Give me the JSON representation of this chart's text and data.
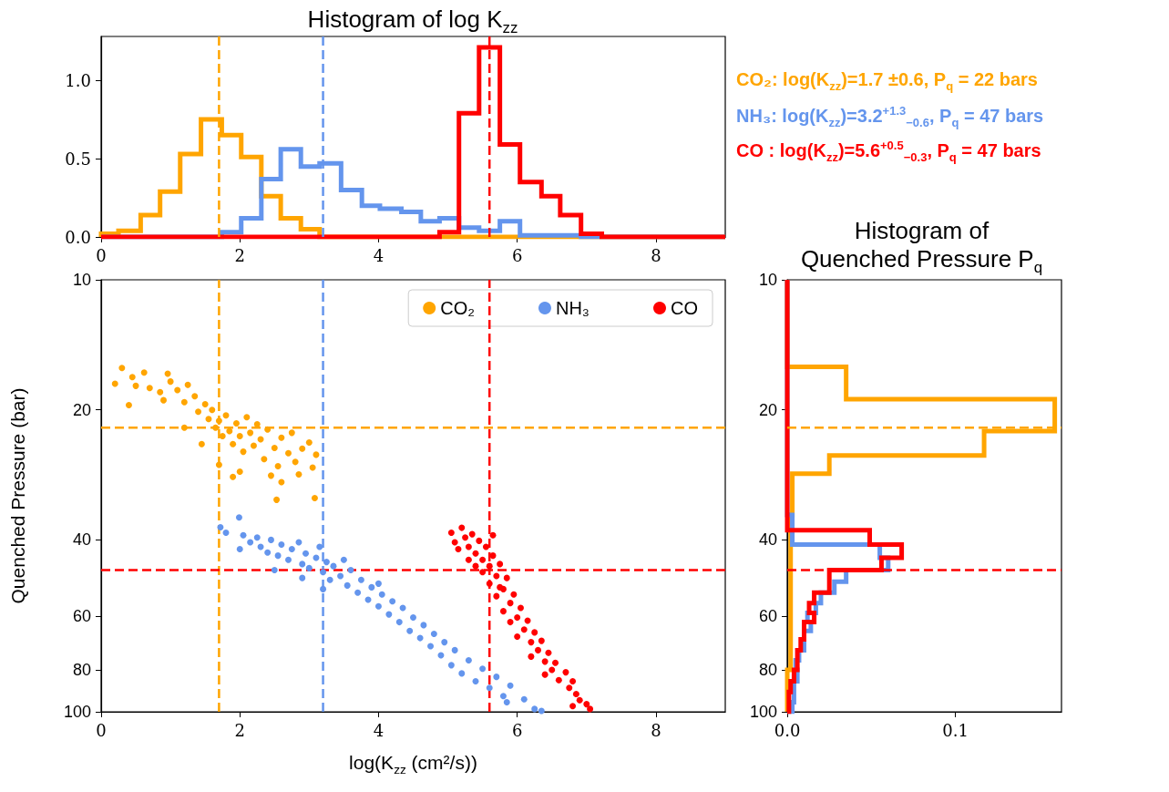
{
  "chart_data": [
    {
      "type": "histogram",
      "title": "Histogram of log K$_{zz}$",
      "xlim": [
        0,
        9
      ],
      "xticks": [
        0,
        2,
        4,
        6,
        8
      ],
      "ylim": [
        0,
        1.28
      ],
      "yticks": [
        {
          "value": 0,
          "label": "0.0"
        },
        {
          "value": 0.5,
          "label": "0.5"
        },
        {
          "value": 1,
          "label": "1.0"
        }
      ],
      "bins": [
        0,
        0.25,
        0.57,
        0.85,
        1.14,
        1.44,
        1.74,
        2.02,
        2.31,
        2.59,
        2.88,
        3.15,
        3.46,
        3.76,
        4.02,
        4.33,
        4.61,
        4.88,
        5.16,
        5.45,
        5.75,
        6.04,
        6.35,
        6.62,
        6.92,
        7.22,
        9
      ],
      "series": [
        {
          "color": "#ffa500",
          "values": [
            0.02,
            0.04,
            0.14,
            0.29,
            0.53,
            0.75,
            0.65,
            0.51,
            0.26,
            0.12,
            0.05,
            0,
            0,
            0,
            0,
            0,
            0,
            0,
            0,
            0,
            0,
            0,
            0,
            0,
            0,
            0
          ]
        },
        {
          "color": "#6495ed",
          "values": [
            0,
            0,
            0,
            0,
            0,
            0,
            0.03,
            0.12,
            0.37,
            0.56,
            0.45,
            0.47,
            0.3,
            0.2,
            0.18,
            0.16,
            0.1,
            0.12,
            0.06,
            0.04,
            0.1,
            0.01,
            0.01,
            0.01,
            0,
            0
          ]
        },
        {
          "color": "#ff0000",
          "values": [
            0,
            0,
            0,
            0,
            0,
            0,
            0,
            0,
            0,
            0,
            0,
            0,
            0,
            0,
            0,
            0,
            0,
            0.03,
            0.79,
            1.21,
            0.59,
            0.35,
            0.26,
            0.14,
            0.02,
            0
          ]
        }
      ],
      "ref_lines": [
        {
          "axis": "x",
          "value": 1.7,
          "color": "#ffa500",
          "line_style": "dashed"
        },
        {
          "axis": "x",
          "value": 3.2,
          "color": "#6495ed",
          "line_style": "dashed"
        },
        {
          "axis": "x",
          "value": 5.6,
          "color": "#ff0000",
          "line_style": "dashed"
        }
      ],
      "annotations": [
        "CO₂: log(K$_{zz}$)=1.7 ±0.6, P$_{q}$ = 22 bars",
        "NH₃: log(K$_{zz}$)=3.2$^{+1.3}$$_{−0.6}$, P$_{q}$ = 47 bars",
        "CO : log(K$_{zz}$)=5.6$^{+0.5}$$_{−0.3}$, P$_{q}$ = 47 bars"
      ]
    },
    {
      "type": "scatter",
      "xlabel": "log(K$_{zz}$ (cm²/s))",
      "ylabel": "Quenched Pressure (bar)",
      "xlim": [
        0,
        9
      ],
      "xticks": [
        0,
        2,
        4,
        6,
        8
      ],
      "ylim": [
        100,
        10
      ],
      "yticks": [
        10,
        20,
        40,
        60,
        80,
        100
      ],
      "log": "y",
      "legend": "top right",
      "marker": "circle",
      "series": [
        {
          "name": "CO₂",
          "color": "#ffa500",
          "x": [
            0.2,
            0.3,
            0.45,
            0.5,
            0.62,
            0.7,
            0.85,
            0.96,
            1.0,
            0.4,
            0.9,
            1.1,
            1.2,
            1.25,
            1.35,
            1.4,
            1.5,
            1.55,
            1.6,
            1.65,
            1.7,
            1.75,
            1.8,
            1.85,
            1.9,
            1.95,
            2.0,
            2.05,
            2.1,
            2.15,
            2.2,
            2.25,
            2.3,
            2.35,
            2.4,
            2.5,
            2.55,
            2.6,
            2.7,
            2.75,
            2.8,
            2.9,
            3.0,
            3.05,
            3.1,
            2.45,
            2.6,
            2.85,
            1.7,
            1.45,
            1.2,
            2.53,
            3.08,
            2.0,
            1.9
          ],
          "values": [
            17.4,
            16.0,
            16.8,
            17.6,
            16.4,
            17.8,
            18.2,
            16.5,
            17.2,
            19.5,
            19.0,
            18.0,
            19.2,
            17.5,
            18.6,
            20.2,
            19.4,
            21.0,
            20.0,
            22.0,
            21.2,
            23.0,
            20.6,
            22.4,
            24.0,
            21.5,
            23.0,
            25.0,
            20.8,
            22.6,
            24.2,
            21.6,
            23.4,
            26.0,
            22.2,
            24.5,
            27.0,
            23.2,
            25.2,
            22.6,
            26.4,
            24.6,
            23.8,
            27.2,
            25.4,
            28.4,
            29.4,
            28.2,
            26.8,
            24.0,
            22.0,
            32.3,
            32.0,
            27.8,
            28.6
          ]
        },
        {
          "name": "NH₃",
          "color": "#6495ed",
          "x": [
            1.72,
            1.8,
            1.99,
            2.05,
            2.0,
            2.15,
            2.25,
            2.3,
            2.4,
            2.45,
            2.55,
            2.6,
            2.7,
            2.75,
            2.85,
            2.9,
            2.95,
            3.0,
            3.1,
            3.15,
            3.2,
            3.25,
            3.3,
            3.35,
            3.45,
            3.5,
            3.55,
            3.6,
            3.7,
            3.75,
            3.85,
            3.9,
            4.0,
            4.05,
            4.15,
            4.2,
            4.3,
            4.35,
            4.45,
            4.5,
            4.6,
            4.65,
            4.75,
            4.8,
            4.9,
            4.95,
            5.05,
            5.1,
            5.2,
            5.3,
            5.4,
            5.5,
            5.6,
            5.7,
            5.8,
            5.85,
            5.9,
            6.1,
            6.25,
            6.35,
            3.2,
            2.5,
            4.0,
            2.9
          ],
          "values": [
            37.4,
            38.5,
            35.5,
            39.0,
            42.0,
            40.5,
            39.5,
            41.5,
            42.8,
            40.0,
            43.5,
            41.0,
            44.5,
            42.0,
            40.5,
            45.5,
            43.0,
            46.5,
            44.0,
            41.5,
            47.5,
            45.0,
            49.5,
            46.0,
            48.5,
            44.5,
            51.0,
            47.0,
            53.0,
            49.5,
            55.0,
            51.5,
            57.0,
            53.5,
            59.5,
            55.5,
            62.0,
            57.5,
            65.0,
            60.5,
            67.5,
            63.0,
            70.5,
            66.0,
            74.0,
            69.0,
            78.0,
            72.0,
            81.5,
            76.0,
            85.0,
            79.5,
            88.0,
            83.0,
            92.0,
            95.0,
            87.0,
            93.5,
            98.5,
            99.5,
            52.0,
            47.0,
            50.5,
            49.0
          ]
        },
        {
          "name": "CO",
          "color": "#ff0000",
          "x": [
            5.05,
            5.1,
            5.2,
            5.15,
            5.25,
            5.3,
            5.35,
            5.4,
            5.45,
            5.5,
            5.55,
            5.6,
            5.5,
            5.65,
            5.7,
            5.75,
            5.6,
            5.8,
            5.7,
            5.85,
            5.9,
            5.8,
            5.95,
            6.0,
            5.9,
            6.05,
            6.1,
            6.0,
            6.15,
            6.2,
            6.25,
            6.3,
            6.2,
            6.35,
            6.4,
            6.45,
            6.5,
            6.4,
            6.55,
            6.6,
            6.7,
            6.75,
            6.8,
            6.85,
            6.9,
            7.0,
            7.05,
            6.8,
            5.4,
            5.3,
            5.65,
            5.75
          ],
          "values": [
            38.5,
            40.5,
            37.5,
            42.0,
            39.5,
            41.5,
            38.8,
            43.0,
            40.2,
            44.5,
            41.5,
            46.0,
            47.5,
            43.5,
            48.5,
            45.5,
            50.5,
            52.0,
            54.0,
            49.0,
            56.0,
            58.5,
            53.5,
            60.5,
            62.0,
            57.5,
            64.5,
            67.0,
            61.5,
            69.0,
            65.5,
            72.0,
            74.5,
            68.5,
            76.5,
            73.0,
            80.0,
            82.0,
            77.0,
            84.5,
            81.0,
            88.0,
            85.0,
            91.0,
            94.0,
            96.0,
            98.5,
            97.0,
            46.0,
            44.5,
            39.0,
            51.5
          ]
        }
      ],
      "ref_lines": [
        {
          "axis": "x",
          "value": 1.7,
          "color": "#ffa500",
          "line_style": "dashed"
        },
        {
          "axis": "x",
          "value": 3.2,
          "color": "#6495ed",
          "line_style": "dashed"
        },
        {
          "axis": "x",
          "value": 5.6,
          "color": "#ff0000",
          "line_style": "dashed"
        },
        {
          "axis": "y",
          "value": 22,
          "color": "#ffa500",
          "line_style": "dashed"
        },
        {
          "axis": "y",
          "value": 47,
          "color": "#ff0000",
          "line_style": "dashed"
        }
      ]
    },
    {
      "type": "histogram",
      "orientation": "horizontal",
      "title": "Histogram of\nQuenched Pressure P$_{q}$",
      "xlim": [
        0,
        0.163
      ],
      "xticks": [
        {
          "value": 0,
          "label": "0.0"
        },
        {
          "value": 0.1,
          "label": "0.1"
        }
      ],
      "ylim": [
        100,
        10
      ],
      "yticks": [
        10,
        20,
        40,
        60,
        80,
        100
      ],
      "log": "y",
      "bins": [
        10,
        15.9,
        18.9,
        22.4,
        25.5,
        28.1,
        35,
        38,
        41,
        44,
        47,
        50,
        53,
        56,
        59,
        62,
        65,
        68,
        72,
        76,
        80,
        85,
        90,
        95,
        100
      ],
      "series": [
        {
          "color": "#ffa500",
          "values": [
            0,
            0.035,
            0.159,
            0.117,
            0.025,
            0.003,
            0.002,
            0.002,
            0.002,
            0.002,
            0.002,
            0.002,
            0.002,
            0.002,
            0.002,
            0.002,
            0.002,
            0.002,
            0.002,
            0.002,
            0,
            0,
            0,
            0
          ]
        },
        {
          "color": "#6495ed",
          "values": [
            0,
            0,
            0,
            0,
            0,
            0,
            0.003,
            0.003,
            0.055,
            0.06,
            0.035,
            0.028,
            0.02,
            0.017,
            0.012,
            0.014,
            0.01,
            0.01,
            0.007,
            0.005,
            0.006,
            0.004,
            0.004,
            0.003
          ]
        },
        {
          "color": "#ff0000",
          "values": [
            0,
            0,
            0,
            0,
            0,
            0,
            0,
            0.049,
            0.068,
            0.056,
            0.025,
            0.025,
            0.016,
            0.013,
            0.016,
            0.01,
            0.01,
            0.008,
            0.006,
            0.006,
            0.004,
            0.002,
            0.001,
            0.001
          ]
        }
      ],
      "ref_lines": [
        {
          "axis": "y",
          "value": 22,
          "color": "#ffa500",
          "line_style": "dashed"
        },
        {
          "axis": "y",
          "value": 47,
          "color": "#ff0000",
          "line_style": "dashed"
        }
      ]
    }
  ]
}
